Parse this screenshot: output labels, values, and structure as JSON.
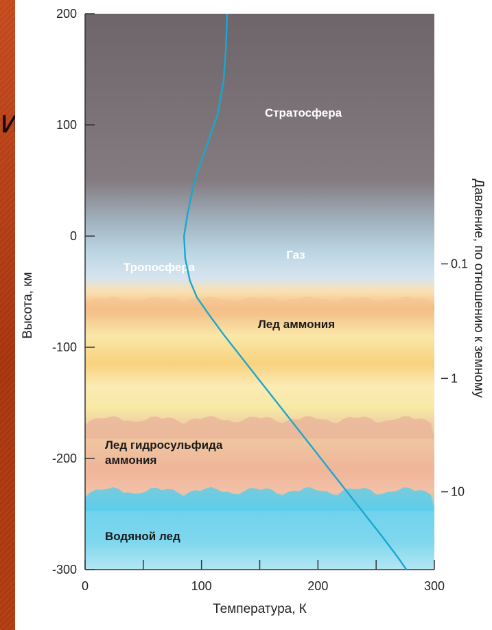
{
  "slide": {
    "fragment_text": "и"
  },
  "chart_data": {
    "type": "line",
    "xlabel": "Температура, К",
    "ylabel": "Высота, км",
    "y2label": "Давление, по отношению к земному",
    "xlim": [
      0,
      300
    ],
    "ylim": [
      -300,
      200
    ],
    "x_ticks": [
      0,
      100,
      200,
      300
    ],
    "x_minor_ticks": [
      50,
      150,
      250
    ],
    "y_ticks": [
      -300,
      -200,
      -100,
      0,
      100,
      200
    ],
    "y2_ticks": [
      {
        "label": "0.1",
        "altitude": -25
      },
      {
        "label": "1",
        "altitude": -128
      },
      {
        "label": "10",
        "altitude": -230
      }
    ],
    "series": [
      {
        "x": [
          122,
          121,
          119,
          114,
          104,
          94,
          88,
          85,
          86,
          90,
          96,
          106,
          120,
          135,
          150,
          165,
          180,
          195,
          210,
          225,
          240,
          255,
          268,
          276
        ],
        "y": [
          200,
          170,
          140,
          110,
          80,
          50,
          20,
          0,
          -20,
          -40,
          -55,
          -70,
          -90,
          -110,
          -130,
          -150,
          -170,
          -190,
          -210,
          -230,
          -250,
          -270,
          -288,
          -300
        ]
      }
    ],
    "regions": [
      {
        "label": "Стратосфера",
        "color": "#7a7278"
      },
      {
        "label": "Газ",
        "color": "#a8c6d6"
      },
      {
        "label": "Тропосфера",
        "color": "#a8c6d6"
      },
      {
        "label": "Лед аммония",
        "color": "#f6d88c"
      },
      {
        "label": "Лед гидросульфида",
        "label_line2": "аммония",
        "color": "#ecb48f"
      },
      {
        "label": "Водяной лед",
        "color": "#4cc8e6"
      }
    ],
    "colors": {
      "curve": "#1aa7cf",
      "axis": "#333333"
    }
  }
}
